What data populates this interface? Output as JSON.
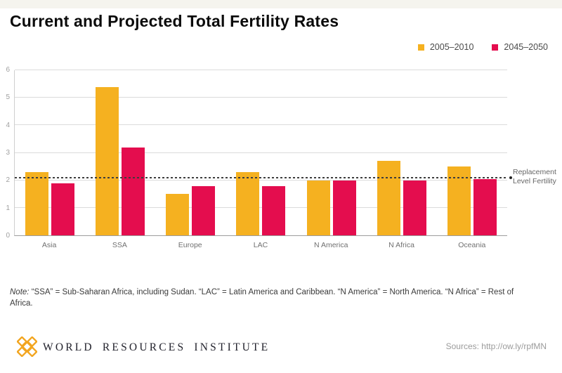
{
  "page_title": "Current and Projected Total Fertility Rates",
  "legend": {
    "items": [
      {
        "label": "2005–2010",
        "color": "#F5B120"
      },
      {
        "label": "2045–2050",
        "color": "#E40D4E"
      }
    ]
  },
  "chart_data": {
    "type": "bar",
    "title": "Current and Projected Total Fertility Rates",
    "categories": [
      "Asia",
      "SSA",
      "Europe",
      "LAC",
      "N America",
      "N Africa",
      "Oceania"
    ],
    "series": [
      {
        "name": "2005–2010",
        "color": "#F5B120",
        "values": [
          2.3,
          5.4,
          1.5,
          2.3,
          2.0,
          2.7,
          2.5
        ]
      },
      {
        "name": "2045–2050",
        "color": "#E40D4E",
        "values": [
          1.9,
          3.2,
          1.8,
          1.8,
          2.0,
          2.0,
          2.05
        ]
      }
    ],
    "ylim": [
      0,
      6
    ],
    "yticks": [
      0,
      1,
      2,
      3,
      4,
      5,
      6
    ],
    "grid": true,
    "legend_position": "top-right",
    "reference_line": {
      "value": 2.1,
      "label": "Replacement Level Fertility",
      "label_lines": [
        "Replacement",
        "Level Fertility"
      ]
    },
    "colors": {
      "gridline": "#dbdbdb",
      "axis": "#9c9c9c"
    }
  },
  "note": {
    "label": "Note:",
    "text": "“SSA” = Sub-Saharan Africa, including Sudan. “LAC” = Latin America and Caribbean. “N America” = North America. “N Africa” = Rest of Africa."
  },
  "footer": {
    "organization": "World Resources Institute",
    "wordmark": "WORLD RESOURCES INSTITUTE",
    "logo_color": "#F2A51F",
    "sources": "Sources: http://ow.ly/rpfMN"
  }
}
